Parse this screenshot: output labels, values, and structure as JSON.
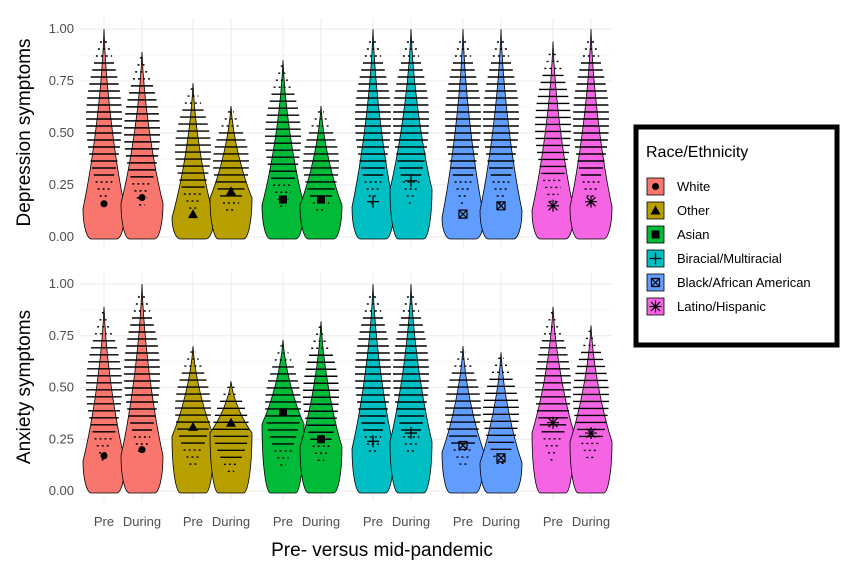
{
  "chart_data": {
    "type": "violin",
    "xlabel": "Pre- versus mid-pandemic",
    "x_tick_labels": [
      "Pre",
      "During"
    ],
    "ylim": [
      0,
      1
    ],
    "y_ticks": [
      "0.00",
      "0.25",
      "0.50",
      "0.75",
      "1.00"
    ],
    "grid": true,
    "legend": {
      "title": "Race/Ethnicity",
      "placement": "right",
      "entries": [
        {
          "name": "White",
          "color": "#F8766D",
          "shape": "circle"
        },
        {
          "name": "Other",
          "color": "#B79F00",
          "shape": "triangle"
        },
        {
          "name": "Asian",
          "color": "#00BA38",
          "shape": "square"
        },
        {
          "name": "Biracial/Multiracial",
          "color": "#00BFC4",
          "shape": "plus"
        },
        {
          "name": "Black/African American",
          "color": "#619CFF",
          "shape": "box-x"
        },
        {
          "name": "Latino/Hispanic",
          "color": "#F564E3",
          "shape": "asterisk"
        }
      ]
    },
    "panels": [
      {
        "ylabel": "Depression symptoms",
        "groups": [
          {
            "name": "White",
            "pre": {
              "mean": 0.16,
              "max": 1.0
            },
            "during": {
              "mean": 0.19,
              "max": 0.89
            }
          },
          {
            "name": "Other",
            "pre": {
              "mean": 0.11,
              "max": 0.74
            },
            "during": {
              "mean": 0.22,
              "max": 0.63
            }
          },
          {
            "name": "Asian",
            "pre": {
              "mean": 0.18,
              "max": 0.85
            },
            "during": {
              "mean": 0.18,
              "max": 0.63
            }
          },
          {
            "name": "Biracial/Multiracial",
            "pre": {
              "mean": 0.17,
              "max": 1.0
            },
            "during": {
              "mean": 0.27,
              "max": 1.0
            }
          },
          {
            "name": "Black/African American",
            "pre": {
              "mean": 0.11,
              "max": 1.0
            },
            "during": {
              "mean": 0.15,
              "max": 1.0
            }
          },
          {
            "name": "Latino/Hispanic",
            "pre": {
              "mean": 0.15,
              "max": 0.94
            },
            "during": {
              "mean": 0.17,
              "max": 1.0
            }
          }
        ]
      },
      {
        "ylabel": "Anxiety symptoms",
        "groups": [
          {
            "name": "White",
            "pre": {
              "mean": 0.17,
              "max": 0.89
            },
            "during": {
              "mean": 0.2,
              "max": 1.0
            }
          },
          {
            "name": "Other",
            "pre": {
              "mean": 0.31,
              "max": 0.7
            },
            "during": {
              "mean": 0.33,
              "max": 0.53
            }
          },
          {
            "name": "Asian",
            "pre": {
              "mean": 0.38,
              "max": 0.73
            },
            "during": {
              "mean": 0.25,
              "max": 0.82
            }
          },
          {
            "name": "Biracial/Multiracial",
            "pre": {
              "mean": 0.24,
              "max": 1.0
            },
            "during": {
              "mean": 0.28,
              "max": 1.0
            }
          },
          {
            "name": "Black/African American",
            "pre": {
              "mean": 0.22,
              "max": 0.7
            },
            "during": {
              "mean": 0.16,
              "max": 0.67
            }
          },
          {
            "name": "Latino/Hispanic",
            "pre": {
              "mean": 0.33,
              "max": 0.89
            },
            "during": {
              "mean": 0.28,
              "max": 0.8
            }
          }
        ]
      }
    ]
  }
}
